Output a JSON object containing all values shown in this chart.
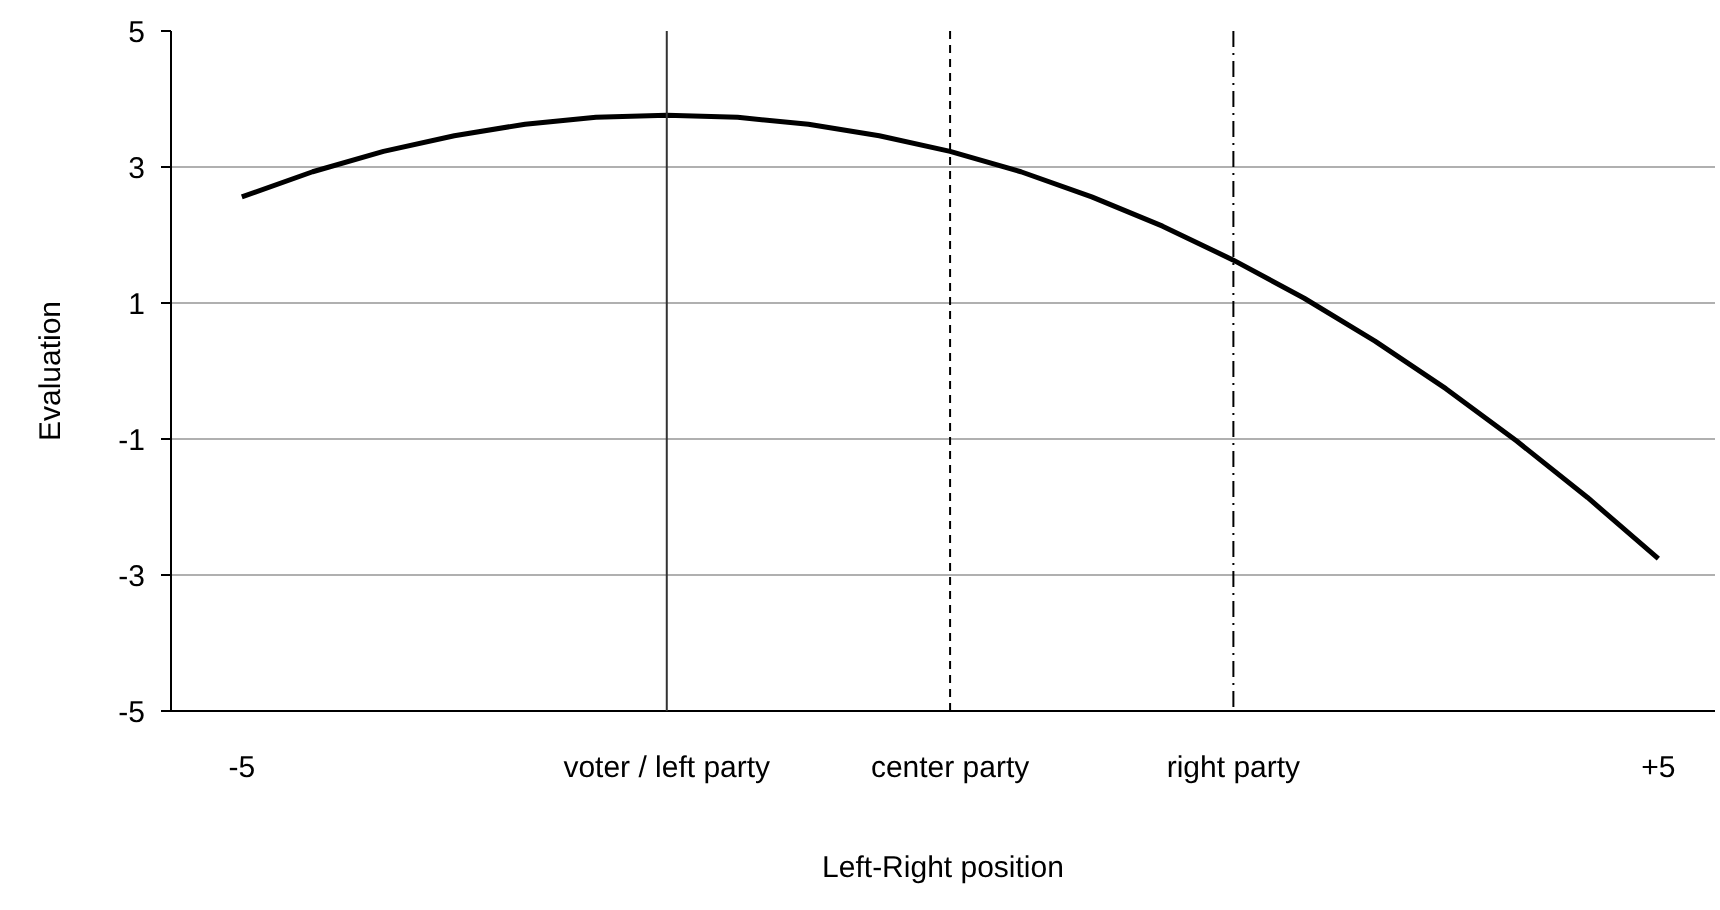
{
  "chart_data": {
    "type": "line",
    "xlabel": "Left-Right position",
    "ylabel": "Evaluation",
    "x": [
      -5,
      -4.5,
      -4,
      -3.5,
      -3,
      -2.5,
      -2,
      -1.5,
      -1,
      -0.5,
      0,
      0.5,
      1,
      1.5,
      2,
      2.5,
      3,
      3.5,
      4,
      4.5,
      5
    ],
    "series": [
      {
        "color": "#000000",
        "values": [
          2.56,
          2.93,
          3.23,
          3.46,
          3.63,
          3.73,
          3.76,
          3.73,
          3.63,
          3.46,
          3.23,
          2.93,
          2.56,
          2.13,
          1.63,
          1.07,
          0.44,
          -0.26,
          -1.03,
          -1.86,
          -2.76
        ]
      }
    ],
    "xlim": [
      -5.5,
      5.4
    ],
    "ylim": [
      -5,
      5
    ],
    "xticks": [
      {
        "value": -5,
        "label": "-5"
      },
      {
        "value": -2,
        "label": "voter / left party"
      },
      {
        "value": 0,
        "label": "center party"
      },
      {
        "value": 2,
        "label": "right party"
      },
      {
        "value": 5,
        "label": "+5"
      }
    ],
    "yticks": [
      -5,
      -3,
      -1,
      1,
      3,
      5
    ],
    "ref_lines": [
      {
        "axis": "x",
        "value": -2,
        "color": "#333333",
        "line_style": "solid"
      },
      {
        "axis": "x",
        "value": 0,
        "color": "#000000",
        "line_style": "dashed"
      },
      {
        "axis": "x",
        "value": 2,
        "color": "#000000",
        "line_style": "dashdot"
      }
    ],
    "grid": "y",
    "marker": "none",
    "line_style": "solid"
  }
}
